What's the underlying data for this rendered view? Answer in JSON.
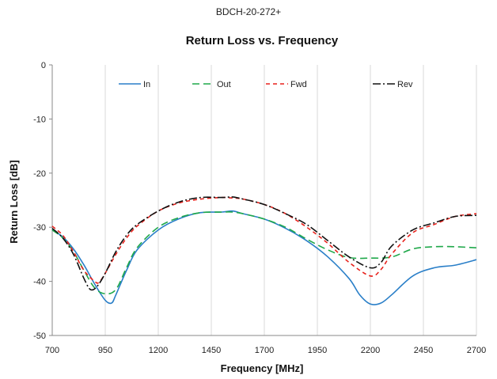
{
  "page": {
    "supertitle": "BDCH-20-272+"
  },
  "chart_data": {
    "type": "line",
    "title": "Return Loss vs. Frequency",
    "xlabel": "Frequency [MHz]",
    "ylabel": "Return Loss [dB]",
    "xlim": [
      700,
      2700
    ],
    "ylim": [
      -50,
      0
    ],
    "xticks": [
      700,
      950,
      1200,
      1450,
      1700,
      1950,
      2200,
      2450,
      2700
    ],
    "yticks": [
      0,
      -10,
      -20,
      -30,
      -40,
      -50
    ],
    "grid": "vertical",
    "legend_position": "top",
    "series": [
      {
        "name": "In",
        "color": "#2a7fc8",
        "dash": "solid",
        "x": [
          700,
          750,
          800,
          850,
          900,
          950,
          980,
          1000,
          1050,
          1100,
          1200,
          1300,
          1400,
          1500,
          1550,
          1600,
          1700,
          1800,
          1900,
          2000,
          2100,
          2150,
          2200,
          2250,
          2300,
          2400,
          2500,
          2600,
          2700
        ],
        "y": [
          -30.5,
          -31.8,
          -34,
          -37,
          -40.5,
          -43.5,
          -44,
          -42.5,
          -38,
          -34.2,
          -30.5,
          -28.4,
          -27.3,
          -27.2,
          -27,
          -27.5,
          -28.5,
          -30.2,
          -32.5,
          -35.5,
          -39.5,
          -42.5,
          -44.2,
          -44,
          -42.5,
          -39,
          -37.5,
          -37,
          -36
        ]
      },
      {
        "name": "Out",
        "color": "#1fa84a",
        "dash": "9,5",
        "x": [
          700,
          750,
          800,
          850,
          900,
          950,
          1000,
          1050,
          1100,
          1200,
          1300,
          1400,
          1500,
          1550,
          1600,
          1700,
          1800,
          1900,
          2000,
          2100,
          2200,
          2300,
          2400,
          2500,
          2600,
          2700
        ],
        "y": [
          -30.5,
          -32,
          -34.5,
          -38,
          -41.2,
          -42.3,
          -41.5,
          -37.5,
          -33.8,
          -30,
          -28.2,
          -27.3,
          -27.2,
          -27.2,
          -27.5,
          -28.5,
          -30,
          -32.2,
          -34.2,
          -35.6,
          -35.7,
          -35.5,
          -34,
          -33.6,
          -33.6,
          -33.8
        ]
      },
      {
        "name": "Fwd",
        "color": "#e8211b",
        "dash": "5,4",
        "x": [
          700,
          750,
          800,
          850,
          900,
          920,
          950,
          1000,
          1050,
          1100,
          1200,
          1300,
          1400,
          1500,
          1550,
          1600,
          1700,
          1800,
          1900,
          2000,
          2100,
          2200,
          2250,
          2300,
          2400,
          2500,
          2600,
          2700
        ],
        "y": [
          -29.8,
          -31.5,
          -34.5,
          -38,
          -40,
          -40.2,
          -38.5,
          -35,
          -32,
          -29.8,
          -27,
          -25.5,
          -24.8,
          -24.5,
          -24.6,
          -24.8,
          -25.8,
          -27.5,
          -30,
          -33,
          -36.5,
          -39,
          -37.8,
          -35,
          -31,
          -29.5,
          -28,
          -27.5
        ]
      },
      {
        "name": "Rev",
        "color": "#111111",
        "dash": "10,3,2,3",
        "x": [
          700,
          750,
          800,
          850,
          880,
          910,
          950,
          1000,
          1050,
          1100,
          1200,
          1300,
          1400,
          1500,
          1550,
          1600,
          1700,
          1800,
          1900,
          2000,
          2100,
          2200,
          2250,
          2300,
          2400,
          2500,
          2600,
          2700
        ],
        "y": [
          -30.2,
          -32,
          -35,
          -39.5,
          -41.5,
          -41,
          -38.5,
          -34.5,
          -31.5,
          -29.5,
          -27,
          -25.3,
          -24.5,
          -24.5,
          -24.4,
          -24.8,
          -25.8,
          -27.5,
          -29.5,
          -32.5,
          -35.5,
          -37.5,
          -36.5,
          -33.5,
          -30.5,
          -29.2,
          -28,
          -27.8
        ]
      }
    ]
  }
}
